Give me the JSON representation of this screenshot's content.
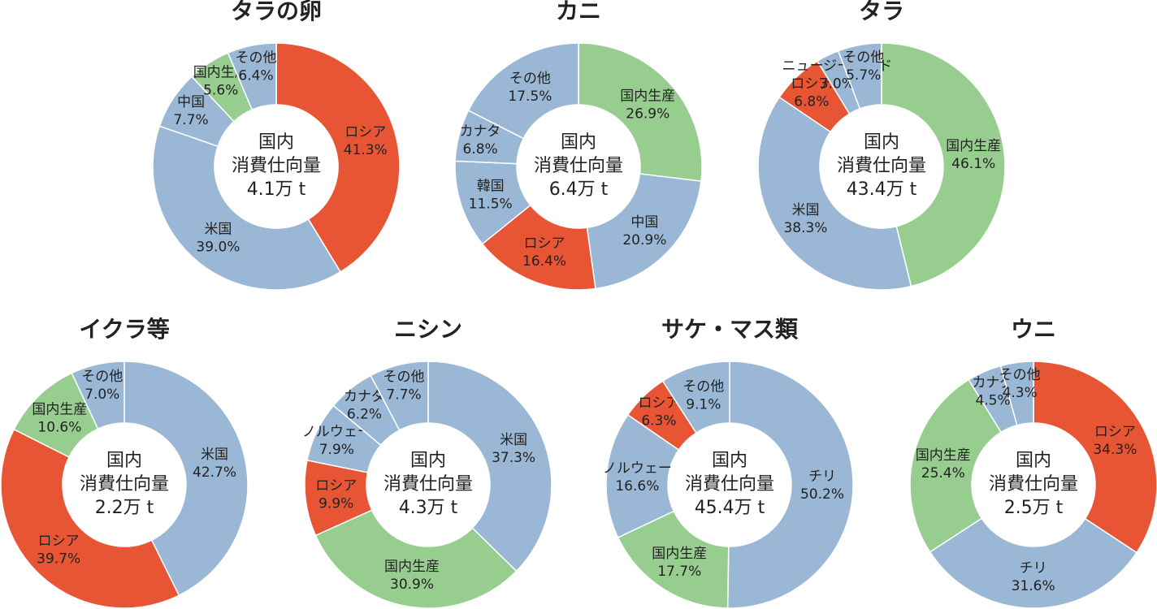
{
  "chart_data": [
    {
      "type": "donut",
      "title": "タラの卵",
      "center_label": [
        "国内",
        "消費仕向量",
        "4.1万 t"
      ],
      "categories": [
        "ロシア",
        "米国",
        "中国",
        "国内生産",
        "その他"
      ],
      "values": [
        41.3,
        39.0,
        7.7,
        5.6,
        6.4
      ],
      "value_labels": [
        "41.3%",
        "39.0%",
        "7.7%",
        "5.6%",
        "6.4%"
      ],
      "colors": [
        "#e85535",
        "#9ab8d5",
        "#9ab8d5",
        "#98cd90",
        "#9ab8d5"
      ]
    },
    {
      "type": "donut",
      "title": "カニ",
      "center_label": [
        "国内",
        "消費仕向量",
        "6.4万 t"
      ],
      "categories": [
        "国内生産",
        "中国",
        "ロシア",
        "韓国",
        "カナダ",
        "その他"
      ],
      "values": [
        26.9,
        20.9,
        16.4,
        11.5,
        6.8,
        17.5
      ],
      "value_labels": [
        "26.9%",
        "20.9%",
        "16.4%",
        "11.5%",
        "6.8%",
        "17.5%"
      ],
      "colors": [
        "#98cd90",
        "#9ab8d5",
        "#e85535",
        "#9ab8d5",
        "#9ab8d5",
        "#9ab8d5"
      ]
    },
    {
      "type": "donut",
      "title": "タラ",
      "center_label": [
        "国内",
        "消費仕向量",
        "43.4万 t"
      ],
      "categories": [
        "国内生産",
        "米国",
        "ロシア",
        "ニュージーランド",
        "その他"
      ],
      "values": [
        46.1,
        38.3,
        6.8,
        3.0,
        5.7
      ],
      "value_labels": [
        "46.1%",
        "38.3%",
        "6.8%",
        "3.0%",
        "5.7%"
      ],
      "colors": [
        "#98cd90",
        "#9ab8d5",
        "#e85535",
        "#9ab8d5",
        "#9ab8d5"
      ]
    },
    {
      "type": "donut",
      "title": "イクラ等",
      "center_label": [
        "国内",
        "消費仕向量",
        "2.2万 t"
      ],
      "categories": [
        "米国",
        "ロシア",
        "国内生産",
        "その他"
      ],
      "values": [
        42.7,
        39.7,
        10.6,
        7.0
      ],
      "value_labels": [
        "42.7%",
        "39.7%",
        "10.6%",
        "7.0%"
      ],
      "colors": [
        "#9ab8d5",
        "#e85535",
        "#98cd90",
        "#9ab8d5"
      ]
    },
    {
      "type": "donut",
      "title": "ニシン",
      "center_label": [
        "国内",
        "消費仕向量",
        "4.3万 t"
      ],
      "categories": [
        "米国",
        "国内生産",
        "ロシア",
        "ノルウェー",
        "カナダ",
        "その他"
      ],
      "values": [
        37.3,
        30.9,
        9.9,
        7.9,
        6.2,
        7.7
      ],
      "value_labels": [
        "37.3%",
        "30.9%",
        "9.9%",
        "7.9%",
        "6.2%",
        "7.7%"
      ],
      "colors": [
        "#9ab8d5",
        "#98cd90",
        "#e85535",
        "#9ab8d5",
        "#9ab8d5",
        "#9ab8d5"
      ]
    },
    {
      "type": "donut",
      "title": "サケ・マス類",
      "center_label": [
        "国内",
        "消費仕向量",
        "45.4万 t"
      ],
      "categories": [
        "チリ",
        "国内生産",
        "ノルウェー",
        "ロシア",
        "その他"
      ],
      "values": [
        50.2,
        17.7,
        16.6,
        6.3,
        9.1
      ],
      "value_labels": [
        "50.2%",
        "17.7%",
        "16.6%",
        "6.3%",
        "9.1%"
      ],
      "colors": [
        "#9ab8d5",
        "#98cd90",
        "#9ab8d5",
        "#e85535",
        "#9ab8d5"
      ]
    },
    {
      "type": "donut",
      "title": "ウニ",
      "center_label": [
        "国内",
        "消費仕向量",
        "2.5万 t"
      ],
      "categories": [
        "ロシア",
        "チリ",
        "国内生産",
        "カナダ",
        "その他"
      ],
      "values": [
        34.3,
        31.6,
        25.4,
        4.5,
        4.3
      ],
      "value_labels": [
        "34.3%",
        "31.6%",
        "25.4%",
        "4.5%",
        "4.3%"
      ],
      "colors": [
        "#e85535",
        "#9ab8d5",
        "#98cd90",
        "#9ab8d5",
        "#9ab8d5"
      ]
    }
  ]
}
